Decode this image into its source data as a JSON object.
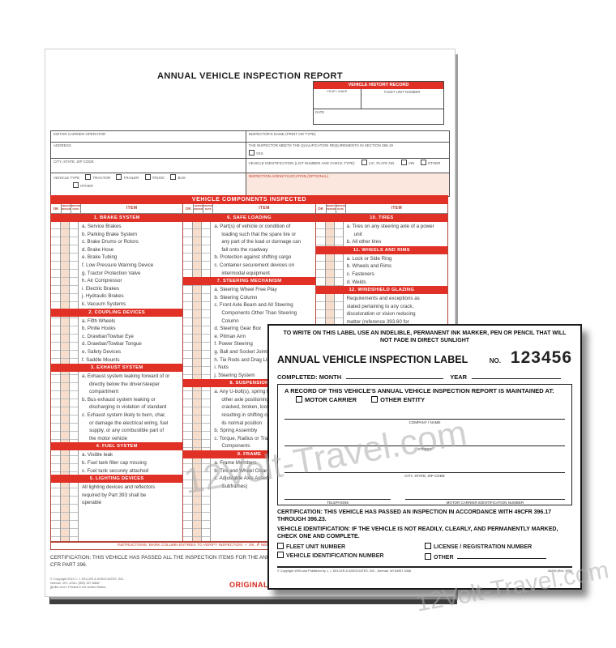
{
  "watermark": {
    "text": "12Volt-Travel.com"
  },
  "report": {
    "title": "ANNUAL VEHICLE INSPECTION REPORT",
    "history_box": {
      "title": "VEHICLE HISTORY RECORD",
      "col1": "YEAR / MAKE",
      "col2": "FLEET UNIT NUMBER",
      "date_label": "DATE"
    },
    "fields": {
      "motor_carrier": "MOTOR CARRIER OPERATOR",
      "address": "ADDRESS",
      "city": "CITY, STATE, ZIP CODE",
      "vehicle_type": {
        "label": "VEHICLE TYPE",
        "options": [
          "TRACTOR",
          "TRAILER",
          "TRUCK",
          "BUS",
          "OTHER"
        ]
      },
      "inspector_name": "INSPECTOR'S NAME (PRINT OR TYPE)",
      "qualification": {
        "label": "THE INSPECTOR MEETS THE QUALIFICATION REQUIREMENTS IN SECTION 396.19",
        "yes": "YES"
      },
      "vehicle_id": {
        "label": "VEHICLE IDENTIFICATION (LIST NUMBER AND CHECK TYPE):",
        "options": [
          "LIC. PLATE NO.",
          "VIN",
          "OTHER"
        ]
      },
      "agency": "INSPECTION AGENCY/LOCATION (OPTIONAL)"
    },
    "components": {
      "banner": "VEHICLE COMPONENTS INSPECTED",
      "col_headers": {
        "ok": "OK",
        "needs_repair": "NEEDS REPAIR",
        "repaired_date": "REPAIRED DATE",
        "item": "ITEM"
      },
      "columns": [
        {
          "sections": [
            {
              "title": "1. BRAKE SYSTEM",
              "items": [
                "a. Service Brakes",
                "b. Parking Brake System",
                "c. Brake Drums or Rotors",
                "d. Brake Hose",
                "e. Brake Tubing",
                "f. Low Pressure Warning Device",
                "g. Tractor Protection Valve",
                "h. Air Compressor",
                "i. Electric Brakes",
                "j. Hydraulic Brakes",
                "k. Vacuum Systems"
              ]
            },
            {
              "title": "2. COUPLING DEVICES",
              "items": [
                "a. Fifth Wheels",
                "b. Pintle Hooks",
                "c. Drawbar/Towbar Eye",
                "d. Drawbar/Towbar Tongue",
                "e. Safety Devices",
                "f. Saddle Mounts"
              ]
            },
            {
              "title": "3. EXHAUST SYSTEM",
              "items": [
                "a. Exhaust system leaking forward of or directly below the driver/sleeper compartment",
                "b. Bus exhaust system leaking or discharging in violation of standard",
                "c. Exhaust system likely to burn, char, or damage the electrical wiring, fuel supply, or any combustible part of the motor vehicle"
              ]
            },
            {
              "title": "4. FUEL SYSTEM",
              "items": [
                "a. Visible leak",
                "b. Fuel tank filler cap missing",
                "c. Fuel tank securely attached"
              ]
            },
            {
              "title": "5. LIGHTING DEVICES",
              "items": [
                "All lighting devices and reflectors required by Part 393 shall be operable"
              ]
            }
          ]
        },
        {
          "sections": [
            {
              "title": "6. SAFE LOADING",
              "items": [
                "a. Part(s) of vehicle or condition of loading such that the spare tire or any part of the load or dunnage can fall onto the roadway",
                "b. Protection against shifting cargo",
                "c. Container securement devices on intermodal equipment"
              ]
            },
            {
              "title": "7. STEERING MECHANISM",
              "items": [
                "a. Steering Wheel Free Play",
                "b. Steering Column",
                "c. Front Axle Beam and All Steering Components Other Than Steering Column",
                "d. Steering Gear Box",
                "e. Pitman Arm",
                "f. Power Steering",
                "g. Ball and Socket Joints",
                "h. Tie Rods and Drag Links",
                "i. Nuts",
                "j. Steering System"
              ]
            },
            {
              "title": "8. SUSPENSION",
              "items": [
                "a. Any U-bolt(s), spring hanger(s), or other axle positioning part(s) cracked, broken, loose or missing resulting in shifting of an axle from its normal position",
                "b. Spring Assembly",
                "c. Torque, Radius or Tracking Components"
              ]
            },
            {
              "title": "9. FRAME",
              "items": [
                "a. Frame Members",
                "b. Tire and Wheel Clearance",
                "c. Adjustable Axle Assemblies (Sliding Subframes)"
              ]
            }
          ]
        },
        {
          "sections": [
            {
              "title": "10. TIRES",
              "items": [
                "a. Tires on any steering axle of a power unit",
                "b. All other tires"
              ]
            },
            {
              "title": "11. WHEELS AND RIMS",
              "items": [
                "a. Lock or Side Ring",
                "b. Wheels and Rims",
                "c. Fasteners",
                "d. Welds"
              ]
            },
            {
              "title": "12. WINDSHIELD GLAZING",
              "items": [
                "Requirements and exceptions as stated pertaining to any crack, discoloration or vision reducing matter (reference 393.60 for exceptions)"
              ]
            }
          ]
        }
      ]
    },
    "instructions": "INSTRUCTIONS: MARK COLUMN ENTRIES TO VERIFY INSPECTION: ✓ OK, ✗ NEEDS REPAIR, NA IF ITEMS DO NOT APPLY, — REPAIRED DATE",
    "certification": "CERTIFICATION: THIS VEHICLE HAS PASSED ALL THE INSPECTION ITEMS FOR THE ANNUAL VEHICLE INSPECTION REPORT IN ACCORDANCE WITH 49 CFR PART 396.",
    "footer_lines": [
      "© Copyright 2019 J. J. KELLER & ASSOCIATES, INC.",
      "Neenah, WI • USA • (800) 327-6868",
      "jjkeller.com • Printed in the United States"
    ],
    "original": "ORIGINAL"
  },
  "label": {
    "header": "TO WRITE ON THIS LABEL USE AN INDELIBLE, PERMANENT INK MARKER, PEN OR PENCIL THAT WILL NOT FADE IN DIRECT SUNLIGHT",
    "title": "ANNUAL VEHICLE INSPECTION LABEL",
    "no_label": "NO.",
    "number": "123456",
    "completed": "COMPLETED:",
    "month": "MONTH",
    "year": "YEAR",
    "record_text": "A RECORD OF THIS VEHICLE'S ANNUAL VEHICLE INSPECTION REPORT IS MAINTAINED AT:",
    "maintained_options": [
      "MOTOR CARRIER",
      "OTHER ENTITY"
    ],
    "line_labels": [
      "COMPANY / NAME",
      "STREET",
      "CITY, STATE, ZIP CODE",
      "TELEPHONE",
      "MOTOR CARRIER IDENTIFICATION NUMBER"
    ],
    "certification": "CERTIFICATION: THIS VEHICLE HAS PASSED AN INSPECTION IN ACCORDANCE WITH 49CFR 396.17 THROUGH 396.23.",
    "vehicle_identification": "VEHICLE IDENTIFICATION: IF THE VEHICLE IS NOT READILY, CLEARLY, AND PERMANENTLY MARKED, CHECK ONE AND COMPLETE.",
    "vid_options": [
      "FLEET UNIT NUMBER",
      "LICENSE / REGISTRATION NUMBER",
      "VEHICLE IDENTIFICATION NUMBER",
      "OTHER"
    ],
    "footer_left": "© Copyright 1995 and Published by J. J. KELLER & ASSOCIATES, INC., Neenah, WI 54957-0368",
    "footer_right": "46-VN (Rev. 3/95)"
  }
}
